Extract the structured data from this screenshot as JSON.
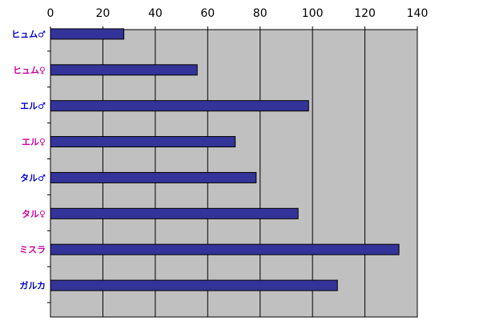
{
  "chart_data": {
    "type": "bar",
    "orientation": "horizontal",
    "title": "",
    "xlabel": "",
    "ylabel": "",
    "xlim": [
      0,
      140
    ],
    "x_ticks": [
      0,
      20,
      40,
      60,
      80,
      100,
      120,
      140
    ],
    "x_tick_labels": [
      "0",
      "20",
      "40",
      "60",
      "80",
      "100",
      "120",
      "140"
    ],
    "x_axis_position": "top",
    "grid": true,
    "legend": "none",
    "categories": [
      "ヒュム♂",
      "ヒュム♀",
      "エル♂",
      "エル♀",
      "タル♂",
      "タル♀",
      "ミスラ",
      "ガルカ"
    ],
    "category_colors": [
      "#0000cc",
      "#cc0099",
      "#0000cc",
      "#cc0099",
      "#0000cc",
      "#cc0099",
      "#cc0099",
      "#0000cc"
    ],
    "values": [
      28,
      56,
      98.5,
      70.5,
      78.5,
      94.5,
      133,
      109.5
    ],
    "bar_color": "#333399",
    "plot_background": "#c0c0c0"
  }
}
